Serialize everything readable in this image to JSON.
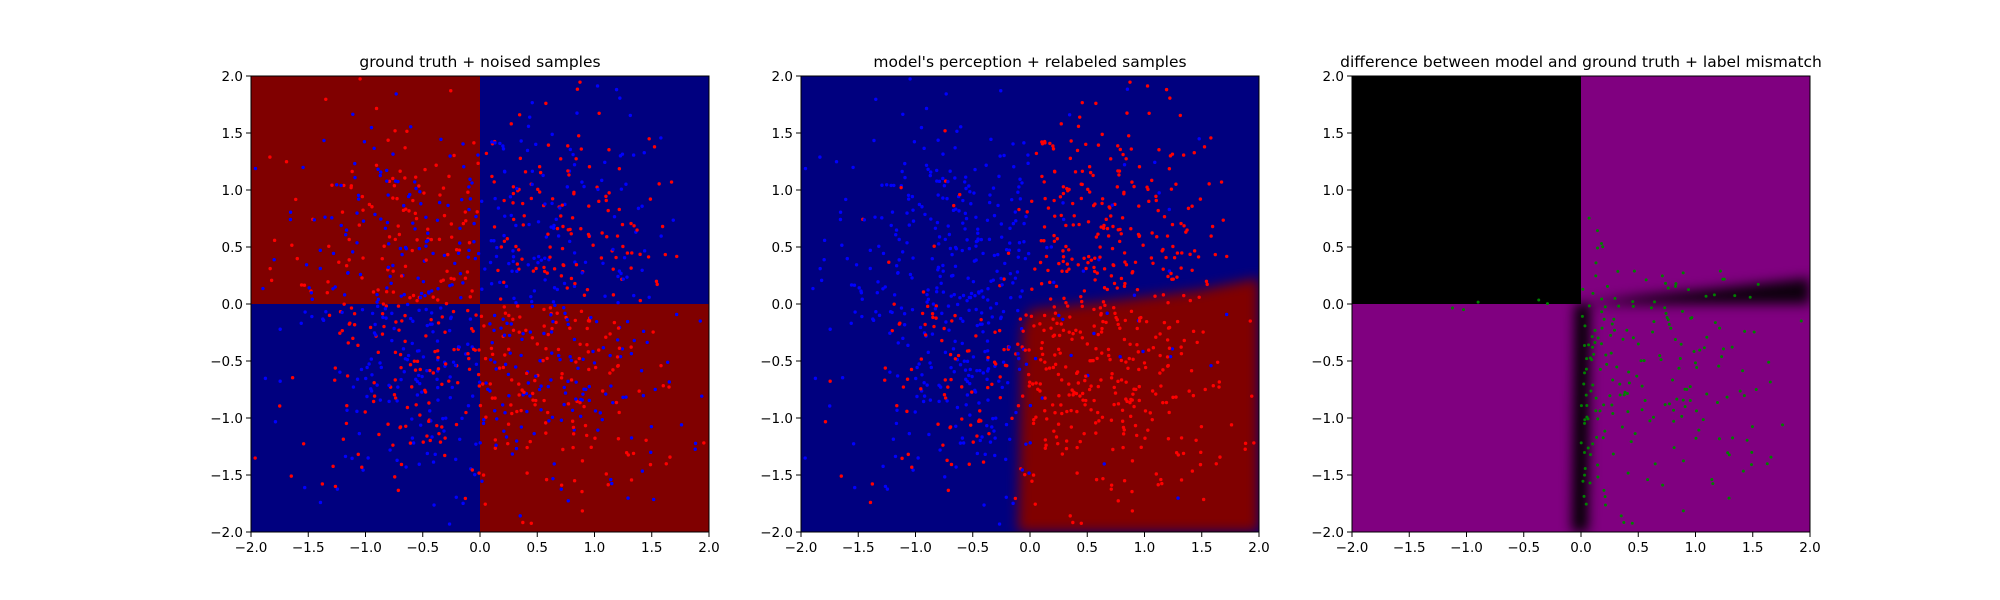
{
  "chart_data": [
    {
      "type": "heatmap",
      "title": "ground truth + noised samples",
      "xlim": [
        -2.0,
        2.0
      ],
      "ylim": [
        -2.0,
        2.0
      ],
      "xticks": [
        "−2.0",
        "−1.5",
        "−1.0",
        "−0.5",
        "0.0",
        "0.5",
        "1.0",
        "1.5",
        "2.0"
      ],
      "yticks": [
        "−2.0",
        "−1.5",
        "−1.0",
        "−0.5",
        "0.0",
        "0.5",
        "1.0",
        "1.5",
        "2.0"
      ],
      "background": "ground truth: red where x·y < 0 (top-left, bottom-right), blue where x·y > 0",
      "point_colors": {
        "red": "#ff0000",
        "blue": "#0000ff"
      },
      "regions": {
        "red": "#800000",
        "blue": "#00007f"
      },
      "samples": "≈1000 scattered points in [-2,2]², colored red/blue"
    },
    {
      "type": "heatmap",
      "title": "model's perception + relabeled samples",
      "xlim": [
        -2.0,
        2.0
      ],
      "ylim": [
        -2.0,
        2.0
      ],
      "xticks": [
        "−2.0",
        "−1.5",
        "−1.0",
        "−0.5",
        "0.0",
        "0.5",
        "1.0",
        "1.5",
        "2.0"
      ],
      "yticks": [
        "−2.0",
        "−1.5",
        "−1.0",
        "−0.5",
        "0.0",
        "0.5",
        "1.0",
        "1.5",
        "2.0"
      ],
      "background": "model: red in bottom-right quadrant only, blue elsewhere, with a blurred decision boundary",
      "point_colors": {
        "red": "#ff0000",
        "blue": "#0000ff"
      },
      "regions": {
        "red": "#800000",
        "blue": "#00007f"
      }
    },
    {
      "type": "heatmap",
      "title": "difference between model and ground truth + label mismatch",
      "xlim": [
        -2.0,
        2.0
      ],
      "ylim": [
        -2.0,
        2.0
      ],
      "xticks": [
        "−2.0",
        "−1.5",
        "−1.0",
        "−0.5",
        "0.0",
        "0.5",
        "1.0",
        "1.5",
        "2.0"
      ],
      "yticks": [
        "−2.0",
        "−1.5",
        "−1.0",
        "−0.5",
        "0.0",
        "0.5",
        "1.0",
        "1.5",
        "2.0"
      ],
      "background": "black where model matches ground truth, purple where it differs",
      "point_colors": {
        "mismatch": "#008000"
      },
      "regions": {
        "match": "#000000",
        "mismatch": "#800080"
      }
    }
  ]
}
